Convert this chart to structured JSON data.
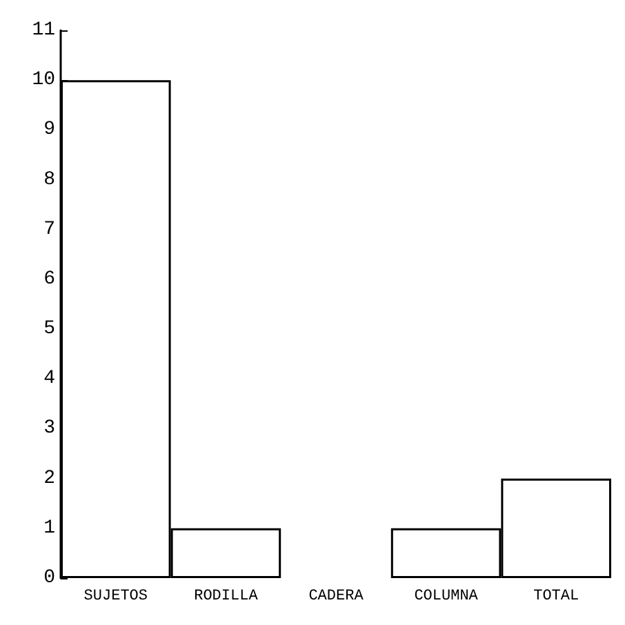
{
  "chart_data": {
    "type": "bar",
    "categories": [
      "SUJETOS",
      "RODILLA",
      "CADERA",
      "COLUMNA",
      "TOTAL"
    ],
    "values": [
      10,
      1,
      0,
      1,
      2
    ],
    "color": "#ffffff",
    "ylim": [
      0,
      11
    ],
    "yticks": [
      0,
      1,
      2,
      3,
      4,
      5,
      6,
      7,
      8,
      9,
      10,
      11
    ]
  }
}
